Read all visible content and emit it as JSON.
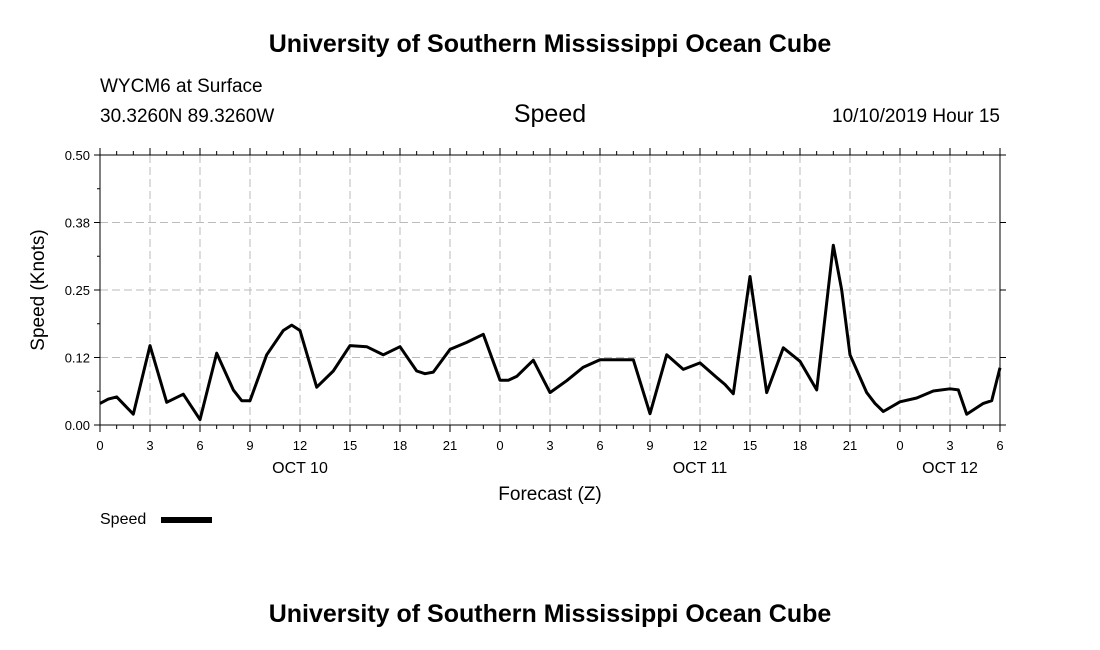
{
  "page": {
    "title_top": "University of Southern Mississippi Ocean Cube",
    "title_bottom": "University of Southern Mississippi Ocean Cube",
    "station": "WYCM6 at Surface",
    "coords": "30.3260N 89.3260W",
    "datetime": "10/10/2019 Hour 15"
  },
  "chart_data": {
    "type": "line",
    "title": "Speed",
    "xlabel": "Forecast (Z)",
    "ylabel": "Speed (Knots)",
    "ylim": [
      0,
      0.5
    ],
    "xlim": [
      0,
      54
    ],
    "y_ticks": [
      "0.00",
      "0.12",
      "0.25",
      "0.38",
      "0.50"
    ],
    "y_tick_values": [
      0,
      0.125,
      0.25,
      0.375,
      0.5
    ],
    "x_tick_labels": [
      "0",
      "3",
      "6",
      "9",
      "12",
      "15",
      "18",
      "21",
      "0",
      "3",
      "6",
      "9",
      "12",
      "15",
      "18",
      "21",
      "0",
      "3",
      "6"
    ],
    "date_labels": [
      {
        "text": "OCT 10",
        "x": 12
      },
      {
        "text": "OCT 11",
        "x": 36
      },
      {
        "text": "OCT 12",
        "x": 51
      }
    ],
    "grid": true,
    "legend_position": "bottom-left",
    "series": [
      {
        "name": "Speed",
        "color": "#000000",
        "x": [
          0,
          0.5,
          1,
          2,
          3,
          4,
          5,
          6,
          7,
          8,
          8.5,
          9,
          10,
          11,
          11.5,
          12,
          13,
          14,
          15,
          16,
          17,
          18,
          19,
          19.5,
          20,
          21,
          22,
          23,
          24,
          24.5,
          25,
          26,
          27,
          28,
          29,
          30,
          31,
          32,
          33,
          34,
          35,
          36,
          37,
          37.5,
          38,
          39,
          40,
          41,
          42,
          43,
          44,
          44.5,
          45,
          46,
          46.5,
          47,
          48,
          49,
          50,
          51,
          51.5,
          52,
          53,
          53.5,
          54
        ],
        "values": [
          0.04,
          0.048,
          0.052,
          0.02,
          0.147,
          0.042,
          0.057,
          0.01,
          0.133,
          0.065,
          0.045,
          0.045,
          0.13,
          0.175,
          0.185,
          0.175,
          0.07,
          0.1,
          0.147,
          0.145,
          0.13,
          0.145,
          0.1,
          0.095,
          0.098,
          0.14,
          0.153,
          0.168,
          0.083,
          0.083,
          0.09,
          0.12,
          0.06,
          0.082,
          0.107,
          0.121,
          0.121,
          0.121,
          0.021,
          0.13,
          0.103,
          0.115,
          0.088,
          0.075,
          0.058,
          0.275,
          0.06,
          0.143,
          0.118,
          0.065,
          0.333,
          0.25,
          0.13,
          0.06,
          0.04,
          0.025,
          0.043,
          0.05,
          0.063,
          0.067,
          0.065,
          0.02,
          0.04,
          0.045,
          0.106
        ]
      }
    ]
  }
}
